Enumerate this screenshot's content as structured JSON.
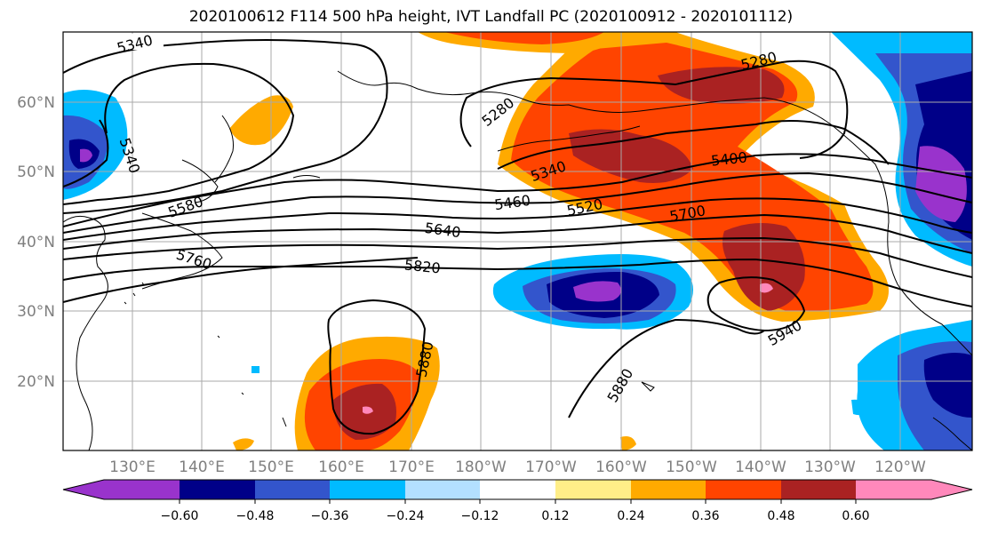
{
  "title": "2020100612 F114 500 hPa height, IVT Landfall PC (2020100912 - 2020101112)",
  "map": {
    "lon_labels": [
      "130°E",
      "140°E",
      "150°E",
      "160°E",
      "170°E",
      "180°W",
      "170°W",
      "160°W",
      "150°W",
      "140°W",
      "130°W",
      "120°W"
    ],
    "lat_labels": [
      "60°N",
      "50°N",
      "40°N",
      "30°N",
      "20°N"
    ],
    "contour_labels": [
      "5340",
      "5340",
      "5280",
      "5280",
      "5340",
      "5400",
      "5460",
      "5520",
      "5580",
      "5640",
      "5700",
      "5760",
      "5820",
      "5880",
      "5880",
      "5940"
    ]
  },
  "colorbar": {
    "colors": [
      "#9933cc",
      "#000088",
      "#3355cc",
      "#00bbff",
      "#b3e0ff",
      "#ffffff",
      "#ffee88",
      "#ffaa00",
      "#ff4400",
      "#aa2222",
      "#ff88bb"
    ],
    "tick_labels": [
      "−0.60",
      "−0.48",
      "−0.36",
      "−0.24",
      "−0.12",
      "0.12",
      "0.24",
      "0.36",
      "0.48",
      "0.60"
    ]
  }
}
